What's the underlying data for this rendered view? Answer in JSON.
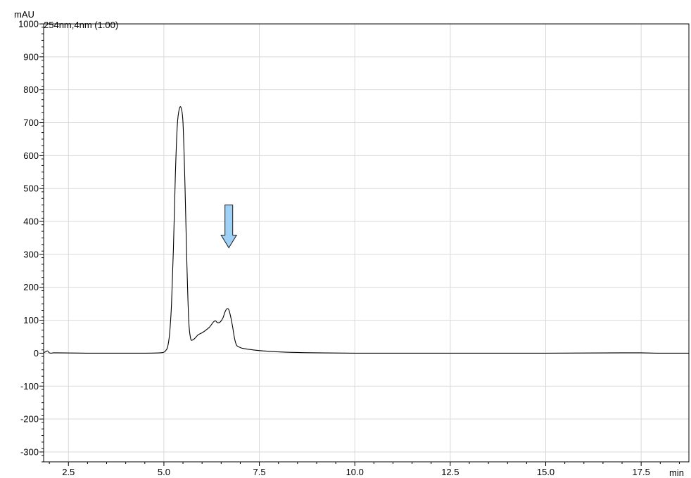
{
  "chart_data": {
    "type": "line",
    "title": "",
    "trace_label": "254nm,4nm (1.00)",
    "ylabel": "mAU",
    "xlabel": "min",
    "xlim": [
      1.85,
      18.75
    ],
    "ylim": [
      -330,
      1000
    ],
    "x_ticks": [
      2.5,
      5.0,
      7.5,
      10.0,
      12.5,
      15.0,
      17.5
    ],
    "x_tick_labels": [
      "2.5",
      "5.0",
      "7.5",
      "10.0",
      "12.5",
      "15.0",
      "17.5"
    ],
    "y_ticks": [
      -300,
      -200,
      -100,
      0,
      100,
      200,
      300,
      400,
      500,
      600,
      700,
      800,
      900,
      1000
    ],
    "y_tick_labels": [
      "-300",
      "-200",
      "-100",
      "0",
      "100",
      "200",
      "300",
      "400",
      "500",
      "600",
      "700",
      "800",
      "900",
      "1000"
    ],
    "grid": true,
    "line_color": "#000000",
    "arrow": {
      "x": 6.7,
      "y_top": 450,
      "y_tip": 320,
      "color": "#9fd0f5"
    },
    "series": [
      {
        "x": [
          1.85,
          1.9,
          1.95,
          2.0,
          2.05,
          2.1,
          2.2,
          3.0,
          4.0,
          4.5,
          4.9,
          5.0,
          5.05,
          5.1,
          5.15,
          5.2,
          5.25,
          5.3,
          5.35,
          5.4,
          5.45,
          5.5,
          5.55,
          5.6,
          5.65,
          5.7,
          5.75,
          5.8,
          5.85,
          5.9,
          6.0,
          6.1,
          6.2,
          6.3,
          6.35,
          6.4,
          6.45,
          6.5,
          6.55,
          6.6,
          6.65,
          6.7,
          6.75,
          6.8,
          6.85,
          6.9,
          6.95,
          7.0,
          7.05,
          7.1,
          7.2,
          7.4,
          7.6,
          8.0,
          8.5,
          9.0,
          10.0,
          12.0,
          15.0,
          17.0,
          17.5,
          18.0,
          18.75
        ],
        "y": [
          2,
          4,
          7,
          1,
          0,
          1,
          1,
          0,
          0,
          0,
          1,
          3,
          8,
          20,
          60,
          150,
          320,
          540,
          690,
          740,
          745,
          700,
          520,
          280,
          100,
          45,
          40,
          44,
          50,
          56,
          62,
          70,
          80,
          95,
          98,
          93,
          93,
          98,
          108,
          125,
          135,
          132,
          110,
          80,
          45,
          25,
          20,
          17,
          15,
          14,
          12,
          9,
          7,
          4,
          2,
          1,
          0,
          0,
          0,
          1,
          1,
          0,
          0
        ]
      }
    ]
  }
}
